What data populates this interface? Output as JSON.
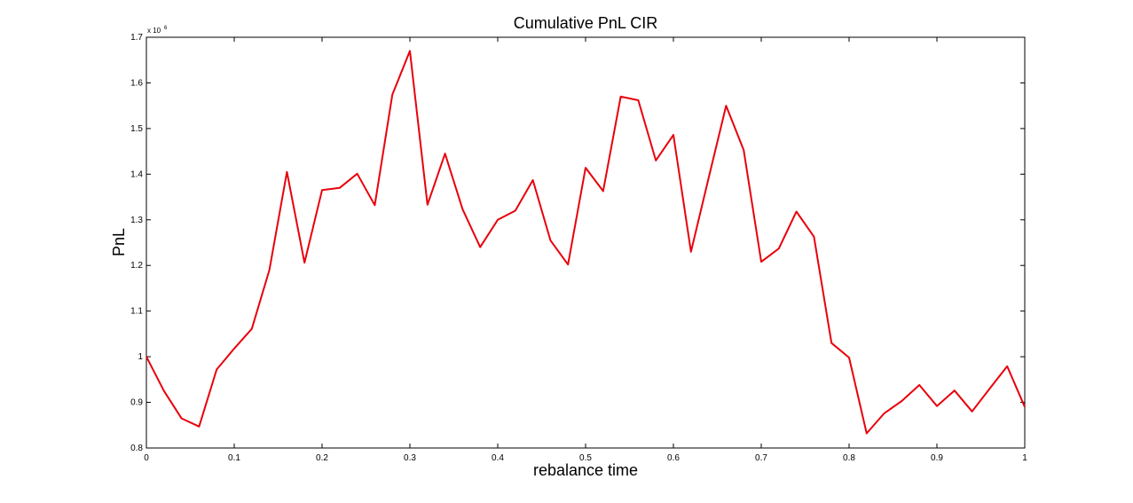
{
  "chart_data": {
    "type": "line",
    "title": "Cumulative PnL CIR",
    "xlabel": "rebalance time",
    "ylabel": "PnL",
    "y_multiplier_label": "x 10",
    "y_multiplier_exponent": "6",
    "xlim": [
      0,
      1
    ],
    "ylim": [
      0.8,
      1.7
    ],
    "x_ticks": [
      "0",
      "0.1",
      "0.2",
      "0.3",
      "0.4",
      "0.5",
      "0.6",
      "0.7",
      "0.8",
      "0.9",
      "1"
    ],
    "y_ticks": [
      "0.8",
      "0.9",
      "1",
      "1.1",
      "1.2",
      "1.3",
      "1.4",
      "1.5",
      "1.6",
      "1.7"
    ],
    "grid": false,
    "series": [
      {
        "color": "#e8000b",
        "x": [
          0,
          0.02,
          0.04,
          0.06,
          0.08,
          0.1,
          0.12,
          0.14,
          0.16,
          0.18,
          0.2,
          0.22,
          0.24,
          0.26,
          0.28,
          0.3,
          0.32,
          0.34,
          0.36,
          0.38,
          0.4,
          0.42,
          0.44,
          0.46,
          0.48,
          0.5,
          0.52,
          0.54,
          0.56,
          0.58,
          0.6,
          0.62,
          0.64,
          0.66,
          0.68,
          0.7,
          0.72,
          0.74,
          0.76,
          0.78,
          0.8,
          0.82,
          0.84,
          0.86,
          0.88,
          0.9,
          0.92,
          0.94,
          0.96,
          0.98,
          1.0
        ],
        "values": [
          1.0,
          0.925,
          0.865,
          0.847,
          0.972,
          1.018,
          1.061,
          1.19,
          1.405,
          1.206,
          1.365,
          1.37,
          1.401,
          1.332,
          1.574,
          1.67,
          1.333,
          1.445,
          1.323,
          1.24,
          1.3,
          1.32,
          1.387,
          1.255,
          1.202,
          1.414,
          1.363,
          1.57,
          1.562,
          1.43,
          1.486,
          1.23,
          1.391,
          1.55,
          1.453,
          1.208,
          1.237,
          1.318,
          1.263,
          1.03,
          0.998,
          0.832,
          0.876,
          0.903,
          0.938,
          0.892,
          0.926,
          0.88,
          0.93,
          0.979,
          0.89
        ]
      }
    ]
  }
}
